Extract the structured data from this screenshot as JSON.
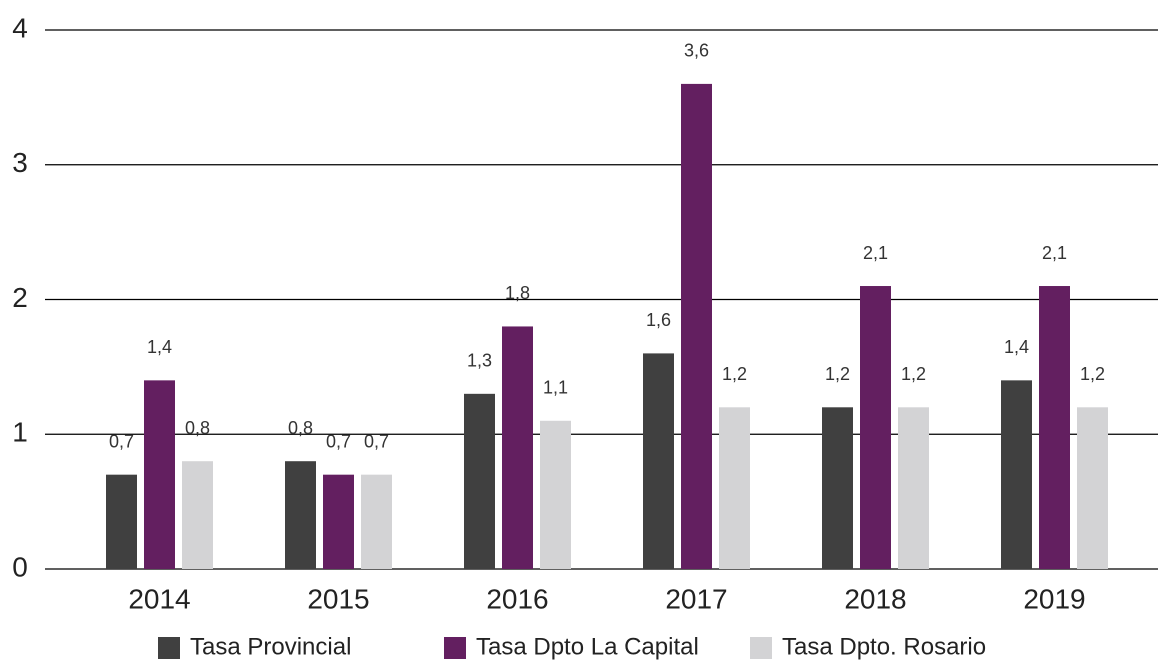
{
  "chart_data": {
    "type": "bar",
    "categories": [
      "2014",
      "2015",
      "2016",
      "2017",
      "2018",
      "2019"
    ],
    "series": [
      {
        "name": "Tasa Provincial",
        "color": "#404040",
        "values": [
          0.7,
          0.8,
          1.3,
          1.6,
          1.2,
          1.4
        ],
        "value_labels": [
          "0,7",
          "0,8",
          "1,3",
          "1,6",
          "1,2",
          "1,4"
        ]
      },
      {
        "name": "Tasa Dpto La Capital",
        "color": "#631f60",
        "values": [
          1.4,
          0.7,
          1.8,
          3.6,
          2.1,
          2.1
        ],
        "value_labels": [
          "1,4",
          "0,7",
          "1,8",
          "3,6",
          "2,1",
          "2,1"
        ]
      },
      {
        "name": "Tasa Dpto. Rosario",
        "color": "#d3d3d5",
        "values": [
          0.8,
          0.7,
          1.1,
          1.2,
          1.2,
          1.2
        ],
        "value_labels": [
          "0,8",
          "0,7",
          "1,1",
          "1,2",
          "1,2",
          "1,2"
        ]
      }
    ],
    "ylim": [
      0,
      4
    ],
    "yticks": [
      0,
      1,
      2,
      3,
      4
    ],
    "grid": true,
    "legend": "bottom"
  }
}
